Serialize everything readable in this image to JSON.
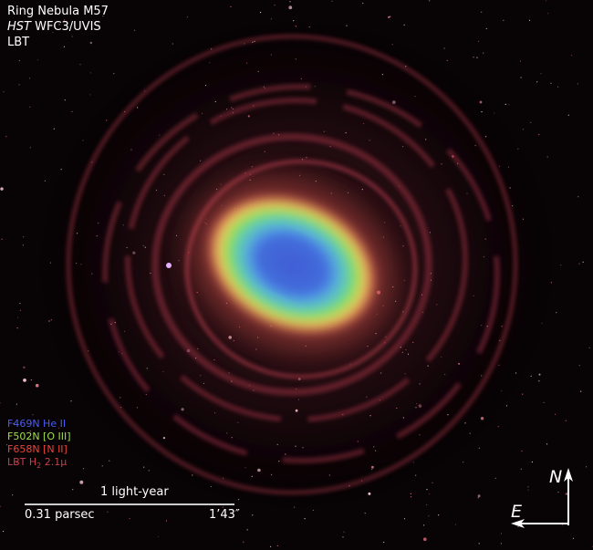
{
  "image": {
    "subject": "Ring Nebula M57",
    "colors": {
      "background": "#080305",
      "halo": "#b8404a",
      "outer_ring": "#f07a5a",
      "oiii": "#6fdc4a",
      "heii": "#3f6fe8"
    }
  },
  "title": {
    "line1": "Ring Nebula M57",
    "line2_italic": "HST",
    "line2_rest": " WFC3/UVIS",
    "line3": "LBT"
  },
  "legend": [
    {
      "filter": "F469N He II",
      "color": "#4a5cf0"
    },
    {
      "filter": "F502N [O III]",
      "color": "#9fe04a"
    },
    {
      "filter": "F658N [N II]",
      "color": "#e8453c"
    },
    {
      "filter_prefix": "LBT H",
      "subscript": "2",
      "filter_suffix": " 2.1μ",
      "color": "#c8404a"
    }
  ],
  "scale_bar": {
    "label_top": "1 light-year",
    "label_left": "0.31 parsec",
    "label_right": "1’43″"
  },
  "compass": {
    "north": "N",
    "east": "E",
    "icon": "compass-arrows-icon"
  }
}
